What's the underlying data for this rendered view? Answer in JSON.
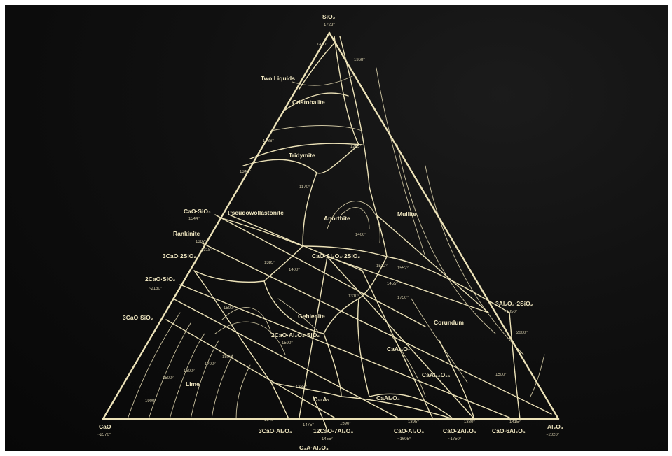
{
  "diagram": {
    "apex_labels": {
      "top": "SiO₂",
      "top_temp": "1723°",
      "left": "CaO",
      "left_temp": "~2570°",
      "right": "Al₂O₃",
      "right_temp": "~2020°"
    },
    "field_labels": [
      {
        "id": "two-liquids",
        "text": "Two Liquids"
      },
      {
        "id": "cristobalite",
        "text": "Cristobalite"
      },
      {
        "id": "tridymite",
        "text": "Tridymite"
      },
      {
        "id": "pseudowollastonite",
        "text": "Pseudowollastonite"
      },
      {
        "id": "anorthite",
        "text": "Anorthite"
      },
      {
        "id": "mullite",
        "text": "Mullite"
      },
      {
        "id": "corundum",
        "text": "Corundum"
      },
      {
        "id": "gehlenite",
        "text": "Gehlenite"
      },
      {
        "id": "lime",
        "text": "Lime"
      },
      {
        "id": "rankinite",
        "text": "Rankinite"
      }
    ],
    "compound_labels": [
      {
        "id": "cs",
        "text": "CaO·SiO₂"
      },
      {
        "id": "cs-temp",
        "text": "1544°"
      },
      {
        "id": "c3s2",
        "text": "3CaO·2SiO₂"
      },
      {
        "id": "c2s",
        "text": "2CaO·SiO₂"
      },
      {
        "id": "c2s-temp",
        "text": "~2130°"
      },
      {
        "id": "c3s",
        "text": "3CaO·SiO₂"
      },
      {
        "id": "cas2",
        "text": "CaO·Al₂O₃·2SiO₂"
      },
      {
        "id": "c2as",
        "text": "2CaO·Al₂O₃·SiO₂"
      },
      {
        "id": "c2as-temp",
        "text": "1590°"
      },
      {
        "id": "a3s2",
        "text": "3Al₂O₃·2SiO₂"
      },
      {
        "id": "a3s2-temp",
        "text": "~1850°"
      },
      {
        "id": "ca2-field",
        "text": "CaAl₄O₇"
      },
      {
        "id": "ca6-field",
        "text": "CaAl₁₂O₁₉"
      },
      {
        "id": "ca-field",
        "text": "CaAl₂O₄"
      },
      {
        "id": "c12a7-field",
        "text": "C₁₂A₇"
      },
      {
        "id": "c3a",
        "text": "3CaO·Al₂O₃"
      },
      {
        "id": "c12a7",
        "text": "12CaO·7Al₂O₃"
      },
      {
        "id": "c12a7-temp",
        "text": "1455°"
      },
      {
        "id": "ca",
        "text": "CaO·Al₂O₃"
      },
      {
        "id": "ca-temp",
        "text": "~1605°"
      },
      {
        "id": "ca2",
        "text": "CaO·2Al₂O₃"
      },
      {
        "id": "ca2-temp",
        "text": "~1750°"
      },
      {
        "id": "ca6",
        "text": "CaO·6Al₂O₃"
      },
      {
        "id": "c3a-bottom",
        "text": "C₃A·Al₂O₃"
      }
    ],
    "temperature_labels": [
      "1470°",
      "1368°",
      "1436°",
      "1265°",
      "1345°",
      "1170°",
      "1307°",
      "1318°",
      "1385°",
      "1512°",
      "1552°",
      "1400°",
      "1500°",
      "1310°",
      "1455°",
      "1335°",
      "1500°",
      "1600°",
      "1700°",
      "1800°",
      "1900°",
      "2000°",
      "1840°",
      "1475°",
      "1590°",
      "1395°",
      "1380°",
      "1415°",
      "1400°",
      "1750°",
      "1500°"
    ]
  }
}
